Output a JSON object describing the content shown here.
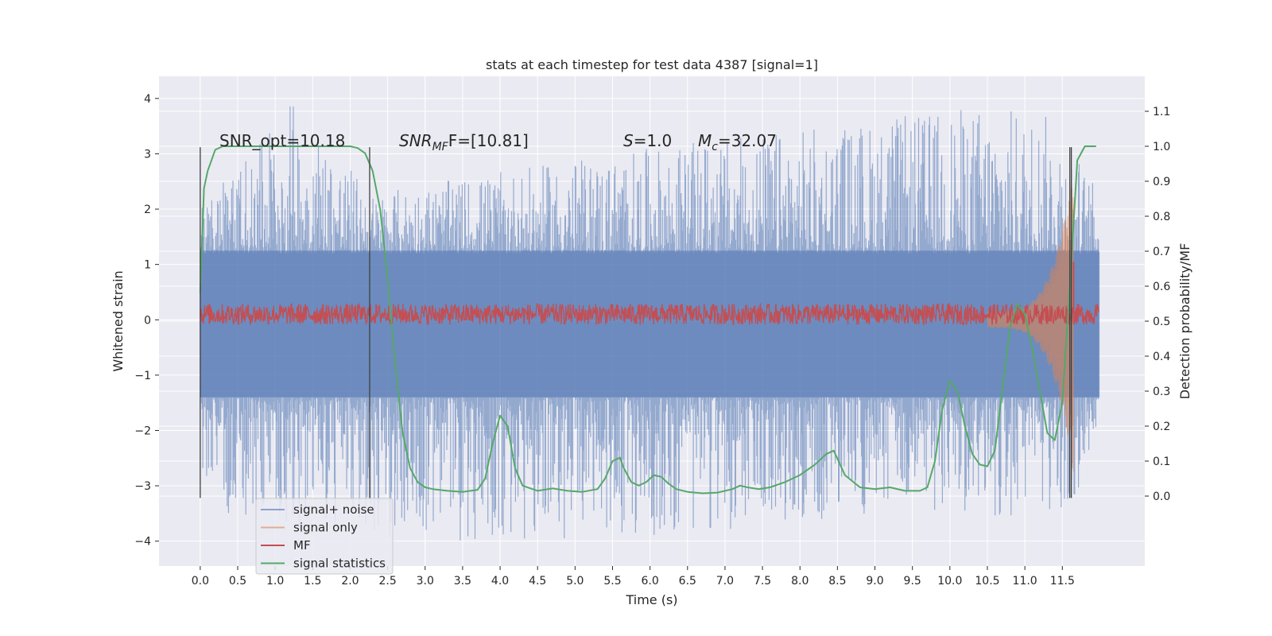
{
  "chart_data": {
    "type": "line",
    "title": "stats at each timestep for test data 4387 [signal=1]",
    "xlabel": "Time (s)",
    "ylabel": "Whitened strain",
    "y2label": "Detection probability/MF",
    "xlim": [
      -0.55,
      12.6
    ],
    "ylim": [
      -4.45,
      4.4
    ],
    "y2lim": [
      -0.2,
      1.2
    ],
    "xticks": [
      "0.0",
      "0.5",
      "1.0",
      "1.5",
      "2.0",
      "2.5",
      "3.0",
      "3.5",
      "4.0",
      "4.5",
      "5.0",
      "5.5",
      "6.0",
      "6.5",
      "7.0",
      "7.5",
      "8.0",
      "8.5",
      "9.0",
      "9.5",
      "10.0",
      "10.5",
      "11.0",
      "11.5"
    ],
    "yticks": [
      "4",
      "3",
      "2",
      "1",
      "0",
      "−1",
      "−2",
      "−3",
      "−4"
    ],
    "y2ticks": [
      "1.1",
      "1.0",
      "0.9",
      "0.8",
      "0.7",
      "0.6",
      "0.5",
      "0.4",
      "0.3",
      "0.2",
      "0.1",
      "0.0"
    ],
    "grid": true,
    "legend_position": "lower-left",
    "annotations": {
      "snr_opt": "SNR_opt=10.18",
      "snr_mf_main": "SNR",
      "snr_mf_sub": "MF",
      "snr_mf_rest": "F=[10.81]",
      "s_main": "S",
      "s_rest": "=1.0",
      "mc_main": "M",
      "mc_sub": "c",
      "mc_rest": "=32.07"
    },
    "vertical_lines_x": [
      0.0,
      2.26,
      11.6,
      11.62
    ],
    "series": [
      {
        "name": "signal+ noise",
        "color": "#4c72b0",
        "axis": "left",
        "kind": "noise-band",
        "x_range": [
          0.0,
          11.99
        ],
        "envelope_upper": [
          [
            0,
            2.0
          ],
          [
            1.2,
            4.0
          ],
          [
            2.3,
            2.3
          ],
          [
            6.0,
            3.1
          ],
          [
            10.5,
            3.9
          ],
          [
            11.4,
            3.7
          ],
          [
            11.99,
            2.3
          ]
        ],
        "envelope_lower": [
          [
            0,
            -2.7
          ],
          [
            0.25,
            -3.65
          ],
          [
            3.8,
            -4.1
          ],
          [
            7.4,
            -3.8
          ],
          [
            9.4,
            -3.45
          ],
          [
            11.6,
            -3.7
          ],
          [
            11.99,
            -2.0
          ]
        ]
      },
      {
        "name": "signal only",
        "color": "#dd8452",
        "axis": "left",
        "kind": "chirp",
        "x_range": [
          10.5,
          11.65
        ],
        "peak_amplitude": 2.6
      },
      {
        "name": "MF",
        "color": "#c44e52",
        "axis": "right",
        "kind": "noisy-trace",
        "baseline": 0.52,
        "spread": 0.06,
        "peak": {
          "x": 11.65,
          "value": 0.67
        }
      },
      {
        "name": "signal statistics",
        "color": "#55a868",
        "axis": "right",
        "x": [
          0.0,
          0.05,
          0.1,
          0.2,
          0.3,
          0.5,
          1.0,
          1.5,
          2.0,
          2.1,
          2.2,
          2.3,
          2.4,
          2.5,
          2.6,
          2.7,
          2.8,
          2.9,
          3.0,
          3.1,
          3.3,
          3.5,
          3.7,
          3.8,
          3.9,
          4.0,
          4.1,
          4.2,
          4.3,
          4.5,
          4.7,
          4.9,
          5.1,
          5.3,
          5.4,
          5.5,
          5.6,
          5.65,
          5.75,
          5.85,
          5.95,
          6.05,
          6.15,
          6.25,
          6.35,
          6.5,
          6.7,
          6.9,
          7.1,
          7.2,
          7.3,
          7.45,
          7.6,
          7.8,
          8.0,
          8.2,
          8.35,
          8.45,
          8.6,
          8.8,
          9.0,
          9.2,
          9.4,
          9.6,
          9.7,
          9.8,
          9.9,
          10.0,
          10.1,
          10.2,
          10.3,
          10.4,
          10.5,
          10.6,
          10.7,
          10.8,
          10.9,
          11.0,
          11.1,
          11.2,
          11.3,
          11.4,
          11.5,
          11.6,
          11.7,
          11.8,
          11.9,
          11.95
        ],
        "y": [
          0.58,
          0.88,
          0.93,
          0.99,
          1.0,
          1.0,
          1.0,
          1.0,
          1.0,
          0.995,
          0.98,
          0.93,
          0.82,
          0.62,
          0.38,
          0.18,
          0.08,
          0.04,
          0.025,
          0.02,
          0.015,
          0.012,
          0.018,
          0.05,
          0.15,
          0.23,
          0.2,
          0.08,
          0.03,
          0.015,
          0.022,
          0.015,
          0.012,
          0.02,
          0.05,
          0.1,
          0.11,
          0.08,
          0.04,
          0.03,
          0.04,
          0.06,
          0.055,
          0.035,
          0.02,
          0.012,
          0.008,
          0.01,
          0.02,
          0.03,
          0.025,
          0.02,
          0.025,
          0.04,
          0.06,
          0.09,
          0.12,
          0.13,
          0.06,
          0.025,
          0.02,
          0.025,
          0.015,
          0.015,
          0.025,
          0.1,
          0.25,
          0.33,
          0.3,
          0.2,
          0.12,
          0.09,
          0.085,
          0.13,
          0.3,
          0.48,
          0.55,
          0.52,
          0.42,
          0.3,
          0.18,
          0.16,
          0.27,
          0.6,
          0.96,
          1.0,
          1.0,
          1.0
        ]
      }
    ]
  }
}
